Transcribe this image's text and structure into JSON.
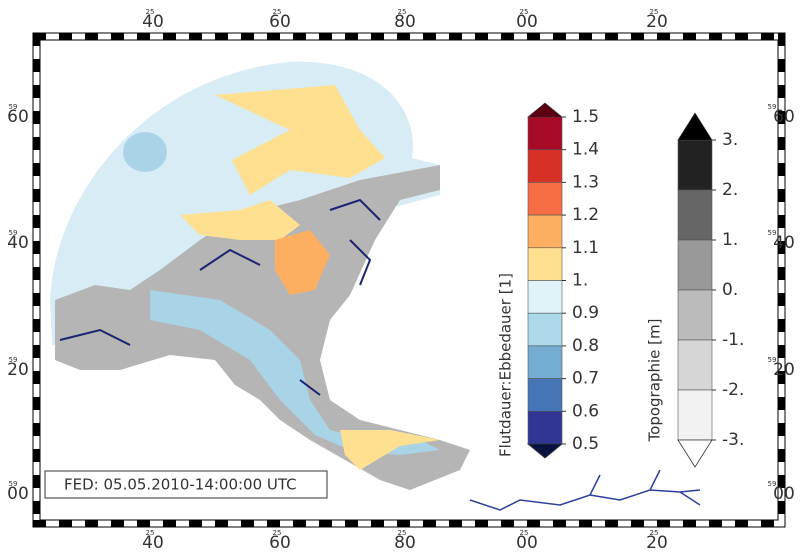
{
  "frame": {
    "top": [
      {
        "minor": "25",
        "major": "40"
      },
      {
        "minor": "25",
        "major": "60"
      },
      {
        "minor": "25",
        "major": "80"
      },
      {
        "minor": "25",
        "major": "00"
      },
      {
        "minor": "25",
        "major": "20"
      }
    ],
    "left": [
      {
        "minor": "59",
        "major": "60"
      },
      {
        "minor": "59",
        "major": "40"
      },
      {
        "minor": "59",
        "major": "20"
      },
      {
        "minor": "59",
        "major": "00"
      }
    ]
  },
  "timestamp": "FED: 05.05.2010-14:00:00 UTC",
  "legends": [
    {
      "title": "Flutdauer:Ebbedauer [1]",
      "ticks": [
        1.5,
        1.4,
        1.3,
        1.2,
        1.1,
        {
          "value": 1,
          "label": "1."
        },
        0.9,
        0.8,
        0.7,
        0.6,
        0.5
      ],
      "colors": [
        "#a50a26",
        "#d73027",
        "#f46d43",
        "#fdae61",
        "#fee090",
        "#e0f3f8",
        "#abd9e9",
        "#74add1",
        "#4575b4",
        "#313695"
      ],
      "over_color": "#5a0010",
      "under_color": "#0a1440"
    },
    {
      "title": "Topographie [m]",
      "ticks": [
        {
          "value": 3,
          "label": "3."
        },
        {
          "value": 2,
          "label": "2."
        },
        {
          "value": 1,
          "label": "1."
        },
        {
          "value": 0,
          "label": "0."
        },
        {
          "value": -1,
          "label": "-1."
        },
        {
          "value": -2,
          "label": "-2."
        },
        {
          "value": -3,
          "label": "-3."
        }
      ],
      "colors": [
        "#222222",
        "#666666",
        "#999999",
        "#bbbbbb",
        "#d6d6d6",
        "#f2f2f2"
      ],
      "over_color": "#000000",
      "under_color": "#ffffff"
    }
  ]
}
